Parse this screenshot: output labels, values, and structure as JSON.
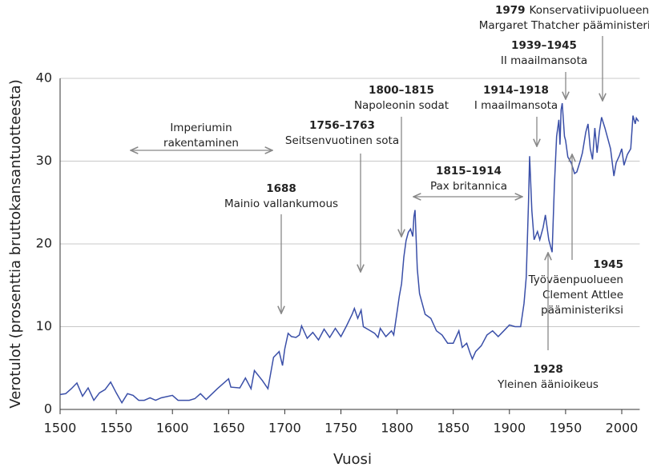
{
  "chart_data": {
    "type": "line",
    "x_label": "Vuosi",
    "y_label": "Verotulot (prosenttia bruttokansantuotteesta)",
    "xlim": [
      1500,
      2016
    ],
    "ylim": [
      0,
      40
    ],
    "xticks": [
      1500,
      1550,
      1600,
      1650,
      1700,
      1750,
      1800,
      1850,
      1900,
      1950,
      2000
    ],
    "yticks": [
      0,
      10,
      20,
      30,
      40
    ],
    "grid": true,
    "series": [
      {
        "color": "#3a4fa8",
        "x": [
          1500,
          1505,
          1510,
          1515,
          1520,
          1525,
          1530,
          1535,
          1540,
          1545,
          1550,
          1555,
          1560,
          1565,
          1570,
          1575,
          1580,
          1585,
          1590,
          1600,
          1605,
          1615,
          1620,
          1625,
          1630,
          1640,
          1650,
          1652,
          1660,
          1665,
          1670,
          1673,
          1680,
          1685,
          1690,
          1695,
          1698,
          1700,
          1703,
          1706,
          1710,
          1713,
          1715,
          1720,
          1725,
          1730,
          1735,
          1740,
          1745,
          1750,
          1755,
          1760,
          1762,
          1765,
          1768,
          1770,
          1775,
          1780,
          1783,
          1785,
          1790,
          1795,
          1797,
          1800,
          1802,
          1804,
          1806,
          1808,
          1810,
          1812,
          1814,
          1815,
          1816,
          1818,
          1820,
          1822,
          1825,
          1830,
          1835,
          1840,
          1845,
          1850,
          1855,
          1858,
          1862,
          1865,
          1867,
          1870,
          1875,
          1880,
          1885,
          1890,
          1895,
          1900,
          1905,
          1910,
          1913,
          1915,
          1917,
          1918,
          1920,
          1922,
          1925,
          1927,
          1930,
          1932,
          1935,
          1938,
          1940,
          1942,
          1944,
          1945,
          1946,
          1947,
          1949,
          1950,
          1952,
          1955,
          1958,
          1960,
          1963,
          1965,
          1968,
          1970,
          1972,
          1974,
          1976,
          1978,
          1980,
          1982,
          1985,
          1988,
          1990,
          1993,
          1995,
          1998,
          2000,
          2002,
          2005,
          2008,
          2010,
          2012,
          2013,
          2015
        ],
        "values": [
          1.8,
          1.9,
          2.5,
          3.2,
          1.6,
          2.6,
          1.1,
          2.0,
          2.4,
          3.3,
          2.0,
          0.8,
          1.9,
          1.7,
          1.1,
          1.1,
          1.4,
          1.1,
          1.4,
          1.7,
          1.1,
          1.1,
          1.3,
          1.9,
          1.2,
          2.5,
          3.7,
          2.7,
          2.6,
          3.8,
          2.5,
          4.7,
          3.5,
          2.5,
          6.3,
          7.0,
          5.3,
          7.3,
          9.2,
          8.8,
          8.7,
          9.0,
          10.1,
          8.6,
          9.3,
          8.4,
          9.7,
          8.7,
          9.8,
          8.8,
          10.1,
          11.5,
          12.2,
          11.0,
          12.0,
          10.0,
          9.6,
          9.2,
          8.7,
          9.8,
          8.8,
          9.5,
          9.0,
          11.8,
          13.7,
          15.2,
          18.4,
          20.4,
          21.4,
          21.8,
          20.9,
          23.3,
          24.1,
          17.0,
          14.0,
          13.0,
          11.5,
          11.0,
          9.5,
          9.0,
          8.0,
          8.0,
          9.5,
          7.5,
          8.0,
          6.8,
          6.1,
          7.0,
          7.7,
          9.0,
          9.5,
          8.8,
          9.5,
          10.2,
          10.0,
          10.0,
          12.8,
          16.0,
          25.0,
          30.6,
          24.0,
          20.5,
          21.5,
          20.5,
          22.0,
          23.5,
          20.5,
          19.0,
          27.0,
          33.0,
          35.0,
          32.0,
          36.2,
          37.0,
          33.0,
          32.5,
          30.5,
          29.8,
          28.5,
          28.7,
          30.0,
          31.0,
          33.5,
          34.5,
          31.5,
          30.2,
          34.0,
          31.0,
          33.5,
          35.3,
          34.0,
          32.5,
          31.5,
          28.2,
          29.8,
          30.7,
          31.5,
          29.5,
          30.8,
          31.5,
          35.5,
          34.5,
          35.2,
          34.8
        ]
      }
    ],
    "annotations": [
      {
        "lines": [
          "Imperiumin",
          "rakentaminen"
        ]
      },
      {
        "heading": "1688",
        "lines": [
          "Mainio vallankumous"
        ]
      },
      {
        "heading": "1756–1763",
        "lines": [
          "Seitsenvuotinen sota"
        ]
      },
      {
        "heading": "1800–1815",
        "lines": [
          "Napoleonin sodat"
        ]
      },
      {
        "heading": "1815–1914",
        "lines": [
          "Pax britannica"
        ]
      },
      {
        "heading": "1914–1918",
        "lines": [
          "I maailmansota"
        ]
      },
      {
        "heading": "1939–1945",
        "lines": [
          "II maailmansota"
        ]
      },
      {
        "heading": "1979",
        "lines": [
          "Konservatiivipuolueen",
          "Margaret Thatcher pääministeriksi"
        ]
      },
      {
        "heading": "1945",
        "lines": [
          "Työväenpuolueen",
          "Clement Attlee",
          "pääministeriksi"
        ]
      },
      {
        "heading": "1928",
        "lines": [
          "Yleinen äänioikeus"
        ]
      }
    ]
  }
}
